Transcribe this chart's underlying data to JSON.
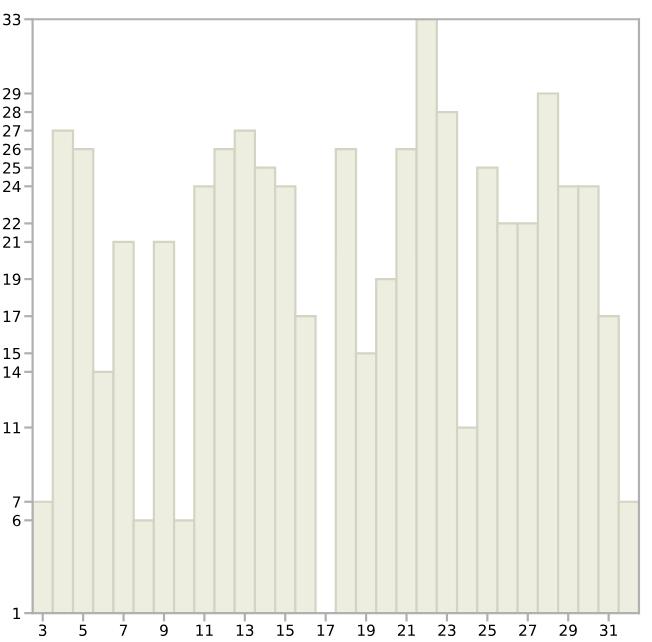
{
  "chart_data": {
    "type": "bar",
    "x": [
      3,
      4,
      5,
      6,
      7,
      8,
      9,
      10,
      11,
      12,
      13,
      14,
      15,
      16,
      17,
      18,
      19,
      20,
      21,
      22,
      23,
      24,
      25,
      26,
      27,
      28,
      29,
      30,
      31,
      32
    ],
    "values": [
      7,
      27,
      26,
      14,
      21,
      6,
      21,
      6,
      24,
      26,
      27,
      25,
      24,
      17,
      1,
      26,
      15,
      19,
      26,
      33,
      28,
      11,
      25,
      22,
      22,
      29,
      24,
      24,
      17,
      7
    ],
    "color": "#eeeee0",
    "xlim": [
      2.5,
      32.5
    ],
    "ylim": [
      1,
      33
    ],
    "xticks": [
      3,
      5,
      7,
      9,
      11,
      13,
      15,
      17,
      19,
      21,
      23,
      25,
      27,
      29,
      31
    ],
    "yticks": [
      1,
      6,
      7,
      11,
      14,
      15,
      17,
      19,
      21,
      22,
      24,
      25,
      26,
      27,
      28,
      29,
      33
    ],
    "grid": false,
    "legend": false
  }
}
